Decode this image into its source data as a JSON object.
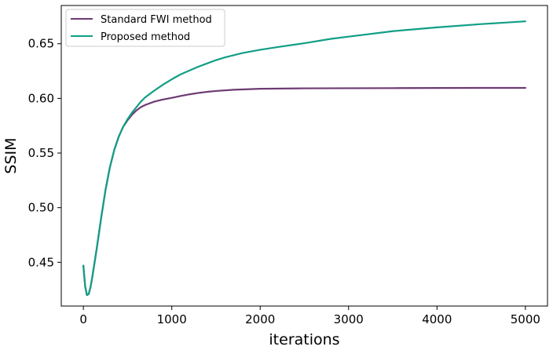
{
  "chart_data": {
    "type": "line",
    "title": "",
    "xlabel": "iterations",
    "ylabel": "SSIM",
    "xlim": [
      -250,
      5250
    ],
    "ylim": [
      0.41,
      0.685
    ],
    "xticks": [
      0,
      1000,
      2000,
      3000,
      4000,
      5000
    ],
    "xtick_labels": [
      "0",
      "1000",
      "2000",
      "3000",
      "4000",
      "5000"
    ],
    "yticks": [
      0.45,
      0.5,
      0.55,
      0.6,
      0.65
    ],
    "ytick_labels": [
      "0.45",
      "0.50",
      "0.55",
      "0.60",
      "0.65"
    ],
    "grid": false,
    "legend_position": "top-left",
    "series": [
      {
        "name": "Standard FWI method",
        "color": "#6e3a73",
        "x": [
          0,
          20,
          40,
          60,
          80,
          100,
          150,
          200,
          250,
          300,
          350,
          400,
          450,
          500,
          550,
          600,
          650,
          700,
          800,
          900,
          1000,
          1100,
          1200,
          1300,
          1400,
          1500,
          1700,
          2000,
          2500,
          3000,
          3500,
          4000,
          4500,
          5000
        ],
        "y": [
          0.447,
          0.428,
          0.42,
          0.421,
          0.427,
          0.436,
          0.462,
          0.49,
          0.516,
          0.537,
          0.553,
          0.565,
          0.574,
          0.58,
          0.585,
          0.589,
          0.592,
          0.594,
          0.597,
          0.599,
          0.6005,
          0.6022,
          0.6037,
          0.605,
          0.606,
          0.6068,
          0.6079,
          0.6088,
          0.6092,
          0.6093,
          0.6094,
          0.6095,
          0.6096,
          0.6096
        ]
      },
      {
        "name": "Proposed method",
        "color": "#119e86",
        "x": [
          0,
          20,
          40,
          60,
          80,
          100,
          150,
          200,
          250,
          300,
          350,
          400,
          450,
          500,
          550,
          600,
          650,
          700,
          800,
          900,
          1000,
          1100,
          1200,
          1300,
          1400,
          1500,
          1600,
          1800,
          2000,
          2200,
          2500,
          2800,
          3000,
          3500,
          4000,
          4500,
          5000
        ],
        "y": [
          0.447,
          0.428,
          0.42,
          0.421,
          0.427,
          0.436,
          0.462,
          0.49,
          0.516,
          0.537,
          0.553,
          0.565,
          0.574,
          0.581,
          0.587,
          0.592,
          0.597,
          0.601,
          0.607,
          0.6125,
          0.6175,
          0.622,
          0.6255,
          0.629,
          0.632,
          0.635,
          0.6375,
          0.6415,
          0.6445,
          0.647,
          0.6505,
          0.6545,
          0.6565,
          0.6615,
          0.665,
          0.668,
          0.6705
        ]
      }
    ]
  }
}
